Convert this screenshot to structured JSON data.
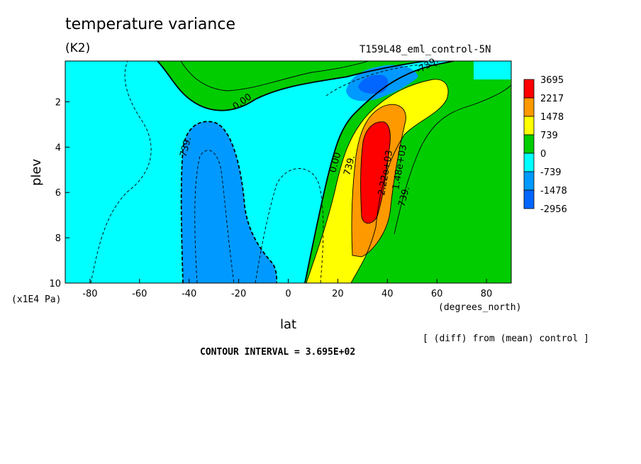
{
  "header": {
    "title": "temperature variance",
    "units": "(K2)",
    "run_id": "T159L48_eml_control-5N"
  },
  "footer": {
    "y_unit": "(x1E4 Pa)",
    "x_unit": "(degrees_north)",
    "diff_note": "[ (diff) from (mean) control ]",
    "contour_interval": "CONTOUR INTERVAL = 3.695E+02"
  },
  "chart_data": {
    "type": "heatmap",
    "title": "temperature variance",
    "xlabel": "lat",
    "ylabel": "plev",
    "xlim": [
      -90,
      90
    ],
    "ylim": [
      10,
      0.2
    ],
    "x_ticks": [
      -80,
      -60,
      -40,
      -20,
      0,
      20,
      40,
      60,
      80
    ],
    "y_ticks": [
      2,
      4,
      6,
      8,
      10
    ],
    "colorbar": {
      "levels": [
        "3695",
        "2217",
        "1478",
        "739",
        "0",
        "-739",
        "-1478",
        "-2956"
      ],
      "colors": [
        "#ff0000",
        "#ff9900",
        "#ffff00",
        "#00cc00",
        "#00ffff",
        "#0099ff",
        "#0066ff"
      ]
    },
    "contour_labels": [
      "0.00",
      "739.",
      "-739.",
      "0.00",
      "739.",
      "2.22e+03",
      "1.48e+03",
      "739.",
      "739."
    ],
    "contour_interval": 369.5,
    "regions": [
      {
        "name": "negative-band-southern",
        "value": -739,
        "lat_range": [
          -90,
          10
        ]
      },
      {
        "name": "negative-core-southern",
        "value": -1478,
        "lat_range": [
          -44,
          -2
        ],
        "plev_range": [
          2.5,
          10
        ]
      },
      {
        "name": "negative-core-upper",
        "value": -1478,
        "lat_range": [
          23,
          42
        ],
        "plev_range": [
          0.2,
          1.8
        ]
      },
      {
        "name": "positive-upper-ridge",
        "value": 739,
        "lat_range": [
          -38,
          80
        ],
        "plev_range": [
          0.2,
          2.5
        ]
      },
      {
        "name": "positive-core-midlat",
        "value": 3695,
        "lat_range": [
          27,
          40
        ],
        "plev_range": [
          2.8,
          7.2
        ]
      },
      {
        "name": "positive-tongue",
        "value": 739,
        "lat_range": [
          5,
          60
        ],
        "plev_range": [
          1.0,
          10
        ]
      }
    ]
  }
}
